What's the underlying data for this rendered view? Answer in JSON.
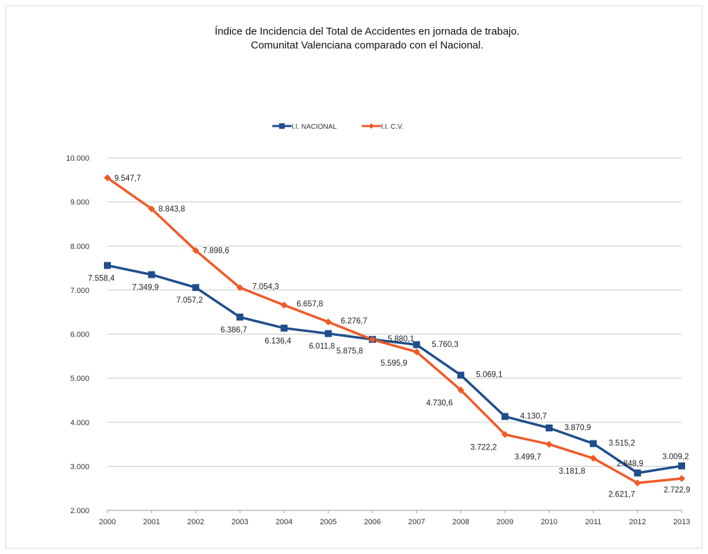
{
  "chart_data": {
    "type": "line",
    "title": [
      "Índice de Incidencia del Total de Accidentes en jornada de trabajo.",
      "Comunitat Valenciana comparado con el Nacional."
    ],
    "x": [
      "2000",
      "2001",
      "2002",
      "2003",
      "2004",
      "2005",
      "2006",
      "2007",
      "2008",
      "2009",
      "2010",
      "2011",
      "2012",
      "2013"
    ],
    "ylim": [
      2000,
      10000
    ],
    "yticks": [
      2000,
      3000,
      4000,
      5000,
      6000,
      7000,
      8000,
      9000,
      10000
    ],
    "ytick_labels": [
      "2.000",
      "3.000",
      "4.000",
      "5.000",
      "6.000",
      "7.000",
      "8.000",
      "9.000",
      "10.000"
    ],
    "grid": true,
    "legend": "top",
    "series": [
      {
        "name": "I.I. NACIONAL",
        "color": "#1F4E8C",
        "marker": "square",
        "values": [
          7558.4,
          7349.9,
          7057.2,
          6386.7,
          6136.4,
          6011.8,
          5880.1,
          5760.3,
          5069.1,
          4130.7,
          3870.9,
          3515.2,
          2848.9,
          3009.2
        ],
        "labels": [
          "7.558,4",
          "7.349,9",
          "7.057,2",
          "6.386,7",
          "6.136,4",
          "6.011,8",
          "5.880,1",
          "5.760,3",
          "5.069,1",
          "4.130,7",
          "3.870,9",
          "3.515,2",
          "2.848,9",
          "3.009,2"
        ]
      },
      {
        "name": "I.I. C.V.",
        "color": "#F05A28",
        "marker": "diamond",
        "values": [
          9547.7,
          8843.8,
          7898.6,
          7054.3,
          6657.8,
          6276.7,
          5875.8,
          5595.9,
          4730.6,
          3722.2,
          3499.7,
          3181.8,
          2621.7,
          2722.9
        ],
        "labels": [
          "9.547,7",
          "8.843,8",
          "7.898,6",
          "7.054,3",
          "6.657,8",
          "6.276,7",
          "5.875,8",
          "5.595,9",
          "4.730,6",
          "3.722,2",
          "3.499,7",
          "3.181,8",
          "2.621,7",
          "2.722,9"
        ]
      }
    ]
  }
}
